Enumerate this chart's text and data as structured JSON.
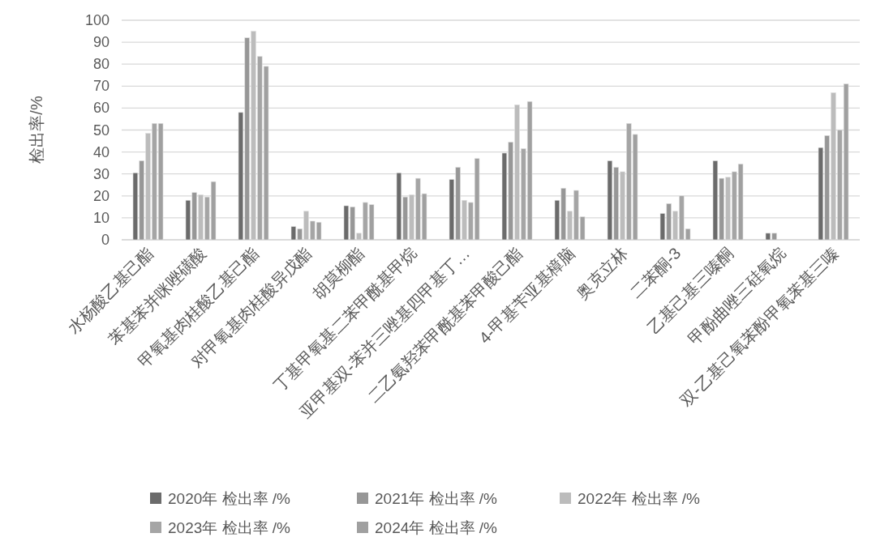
{
  "chart_data": {
    "type": "bar",
    "ylabel": "检出率/%",
    "categories": [
      "水杨酸乙基己酯",
      "苯基苯并咪唑磺酸",
      "甲氧基肉桂酸乙基己酯",
      "对甲氧基肉桂酸异戊酯",
      "胡莫柳酯",
      "丁基甲氧基二苯甲酰基甲烷",
      "亚甲基双-苯并三唑基四甲基丁…",
      "二乙氨羟苯甲酰基苯甲酸己酯",
      "4-甲基苄亚基樟脑",
      "奥克立林",
      "二苯酮-3",
      "乙基己基三嗪酮",
      "甲酚曲唑三硅氧烷",
      "双-乙基己氧苯酚甲氧苯基三嗪"
    ],
    "series": [
      {
        "name": "2020年 检出率 /%",
        "color": "#6b6b6b",
        "values": [
          30.5,
          18,
          58,
          6,
          15.5,
          30.5,
          27.5,
          39.5,
          18,
          36,
          12,
          36,
          3,
          42
        ]
      },
      {
        "name": "2021年 检出率 /%",
        "color": "#979797",
        "values": [
          36,
          21.5,
          92,
          5,
          15,
          19.5,
          33,
          44.5,
          23.5,
          33,
          16.5,
          28,
          3,
          47.5
        ]
      },
      {
        "name": "2022年 检出率 /%",
        "color": "#bcbcbc",
        "values": [
          48.5,
          20.5,
          95,
          13,
          3,
          20.5,
          18,
          61.5,
          13,
          31,
          13,
          28.5,
          null,
          67
        ]
      },
      {
        "name": "2023年 检出率 /%",
        "color": "#a5a5a5",
        "values": [
          53,
          19.5,
          83.5,
          8.5,
          17,
          28,
          17,
          41.5,
          22.5,
          53,
          20,
          31,
          null,
          50
        ]
      },
      {
        "name": "2024年 检出率 /%",
        "color": "#a0a0a0",
        "values": [
          53,
          26.5,
          79,
          8,
          16,
          21,
          37,
          63,
          10.5,
          48,
          5,
          34.5,
          null,
          71
        ]
      }
    ],
    "ylim": [
      0,
      100
    ],
    "yticks": [
      0,
      10,
      20,
      30,
      40,
      50,
      60,
      70,
      80,
      90,
      100
    ],
    "grid": "y",
    "legend": "bottom"
  }
}
